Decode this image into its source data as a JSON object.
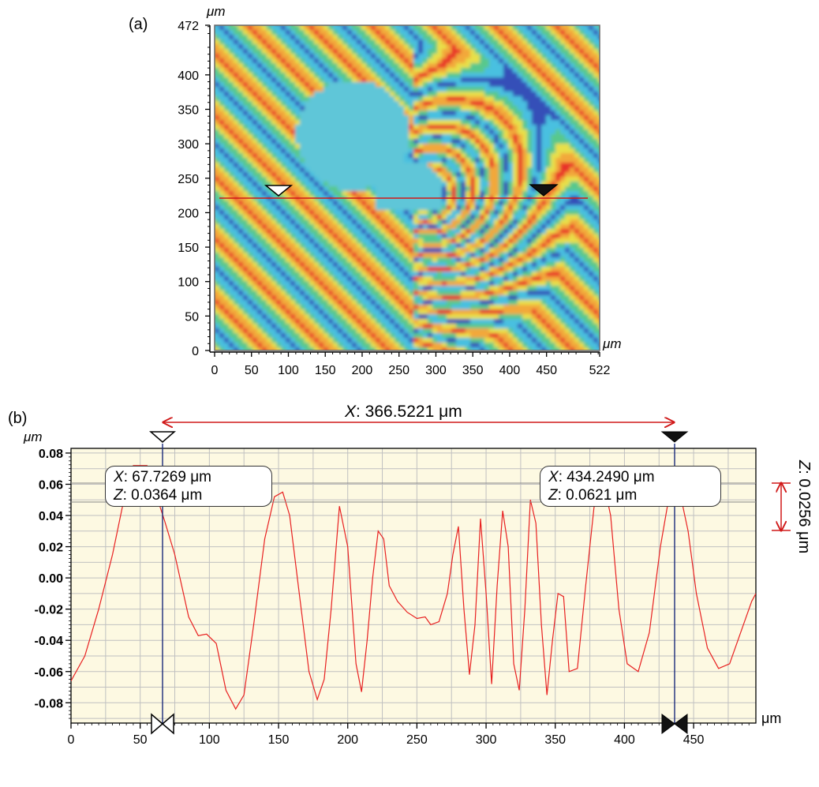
{
  "panel_a": {
    "label": "(a)",
    "x_unit": "μm",
    "y_unit": "μm",
    "x_ticks": [
      "0",
      "50",
      "100",
      "150",
      "200",
      "250",
      "300",
      "350",
      "400",
      "450",
      "522"
    ],
    "y_ticks": [
      "0",
      "50",
      "100",
      "150",
      "200",
      "250",
      "300",
      "350",
      "400",
      "472"
    ],
    "colors": {
      "red": "#e8302a",
      "orange": "#f2a83a",
      "yellow": "#e8e04a",
      "green": "#58c88c",
      "cyan": "#48c0e0",
      "blue": "#3550b8",
      "flat": "#5fc6d8"
    }
  },
  "panel_b": {
    "label": "(b)",
    "y_unit": "μm",
    "x_unit": "μm",
    "measure_x_label": "X",
    "measure_x_value": ": 366.5221 μm",
    "measure_z_label": "Z",
    "measure_z_value": ": 0.0256 μm",
    "cursor_left": {
      "x_label": "X",
      "x_value": ": 67.7269 μm",
      "z_label": "Z",
      "z_value": ": 0.0364 μm"
    },
    "cursor_right": {
      "x_label": "X",
      "x_value": ": 434.2490 μm",
      "z_label": "Z",
      "z_value": ": 0.0621 μm"
    },
    "colors": {
      "background": "#fdf9e2",
      "profile": "#e82020",
      "cursor_line": "#1a2a7a",
      "grid": "#c0c0c0"
    }
  },
  "chart_data": [
    {
      "type": "heatmap",
      "title": "",
      "xlabel": "μm",
      "ylabel": "μm",
      "xlim": [
        0,
        522
      ],
      "ylim": [
        0,
        472
      ],
      "x_ticks": [
        0,
        50,
        100,
        150,
        200,
        250,
        300,
        350,
        400,
        450,
        522
      ],
      "y_ticks": [
        0,
        50,
        100,
        150,
        200,
        250,
        300,
        350,
        400,
        472
      ],
      "profile_line_y": 223,
      "cursor_markers_x": [
        83,
        440
      ]
    },
    {
      "type": "line",
      "title": "",
      "xlabel": "μm",
      "ylabel": "μm",
      "xlim": [
        0,
        495
      ],
      "ylim": [
        -0.093,
        0.083
      ],
      "x_ticks": [
        0,
        50,
        100,
        150,
        200,
        250,
        300,
        350,
        400,
        450
      ],
      "y_ticks": [
        0.08,
        0.06,
        0.04,
        0.02,
        0.0,
        -0.02,
        -0.04,
        -0.06,
        -0.08
      ],
      "y_tick_labels": [
        "0.08",
        "0.06",
        "0.04",
        "0.02",
        "0.00",
        "-0.02",
        "-0.04",
        "-0.06",
        "-0.08"
      ],
      "grid": true,
      "series": [
        {
          "x": [
            0,
            10,
            20,
            30,
            37,
            45,
            55,
            62,
            67.7,
            75,
            85,
            92,
            98,
            105,
            112,
            119,
            125,
            132,
            140,
            147,
            153,
            158,
            165,
            172,
            178,
            183,
            188,
            194,
            200,
            206,
            210,
            214,
            218,
            222,
            226,
            230,
            236,
            243,
            250,
            256,
            260,
            266,
            272,
            276,
            280,
            284,
            288,
            292,
            296,
            300,
            304,
            308,
            312,
            316,
            320,
            324,
            328,
            332,
            336,
            340,
            344,
            348,
            352,
            356,
            360,
            366,
            372,
            378,
            384,
            390,
            396,
            402,
            410,
            418,
            426,
            434.2,
            440,
            446,
            452,
            460,
            468,
            476,
            484,
            492,
            495
          ],
          "y": [
            -0.066,
            -0.05,
            -0.02,
            0.015,
            0.045,
            0.072,
            0.072,
            0.052,
            0.0364,
            0.015,
            -0.025,
            -0.037,
            -0.036,
            -0.042,
            -0.072,
            -0.084,
            -0.075,
            -0.03,
            0.025,
            0.052,
            0.055,
            0.04,
            -0.01,
            -0.06,
            -0.078,
            -0.065,
            -0.02,
            0.046,
            0.02,
            -0.055,
            -0.073,
            -0.04,
            0.0,
            0.03,
            0.025,
            -0.005,
            -0.015,
            -0.022,
            -0.026,
            -0.025,
            -0.03,
            -0.028,
            -0.01,
            0.015,
            0.033,
            -0.02,
            -0.062,
            -0.03,
            0.038,
            -0.01,
            -0.068,
            -0.005,
            0.043,
            0.02,
            -0.055,
            -0.072,
            -0.02,
            0.05,
            0.035,
            -0.03,
            -0.075,
            -0.04,
            -0.01,
            -0.012,
            -0.06,
            -0.058,
            -0.005,
            0.045,
            0.065,
            0.04,
            -0.02,
            -0.055,
            -0.06,
            -0.035,
            0.02,
            0.0621,
            0.055,
            0.03,
            -0.01,
            -0.045,
            -0.058,
            -0.055,
            -0.035,
            -0.015,
            -0.01
          ]
        }
      ],
      "cursors": [
        {
          "x": 67.7269,
          "z": 0.0364
        },
        {
          "x": 434.249,
          "z": 0.0621
        }
      ],
      "delta_x": 366.5221,
      "delta_z": 0.0256
    }
  ]
}
